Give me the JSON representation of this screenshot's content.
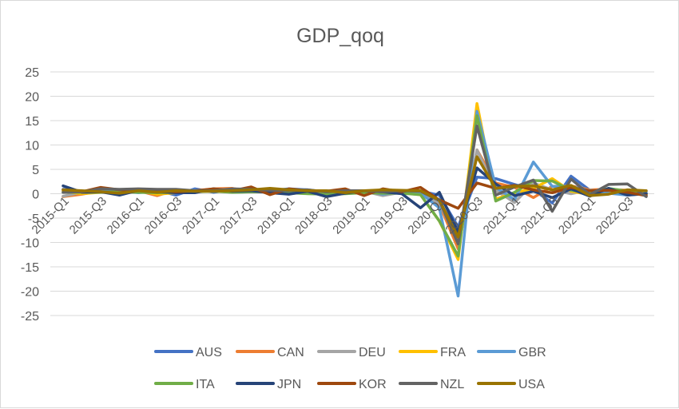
{
  "chart_data": {
    "type": "line",
    "title": "GDP_qoq",
    "xlabel": "",
    "ylabel": "",
    "ylim": [
      -25,
      25
    ],
    "yticks": [
      25,
      20,
      15,
      10,
      5,
      0,
      -5,
      -10,
      -15,
      -20,
      -25
    ],
    "grid": true,
    "legend_position": "bottom",
    "x": [
      "2015-Q1",
      "2015-Q2",
      "2015-Q3",
      "2015-Q4",
      "2016-Q1",
      "2016-Q2",
      "2016-Q3",
      "2016-Q4",
      "2017-Q1",
      "2017-Q2",
      "2017-Q3",
      "2017-Q4",
      "2018-Q1",
      "2018-Q2",
      "2018-Q3",
      "2018-Q4",
      "2019-Q1",
      "2019-Q2",
      "2019-Q3",
      "2019-Q4",
      "2020-Q1",
      "2020-Q2",
      "2020-Q3",
      "2020-Q4",
      "2021-Q1",
      "2021-Q2",
      "2021-Q3",
      "2021-Q4",
      "2022-Q1",
      "2022-Q2",
      "2022-Q3",
      "2022-Q4"
    ],
    "x_tick_labels": [
      "2015-Q1",
      "2015-Q3",
      "2016-Q1",
      "2016-Q3",
      "2017-Q1",
      "2017-Q3",
      "2018-Q1",
      "2018-Q3",
      "2019-Q1",
      "2019-Q3",
      "2020-Q1",
      "2020-Q3",
      "2021-Q1",
      "2021-Q3",
      "2022-Q1",
      "2022-Q3"
    ],
    "series": [
      {
        "name": "AUS",
        "color": "#4472c4",
        "values": [
          0.9,
          0.3,
          0.9,
          0.6,
          0.8,
          0.7,
          -0.3,
          1.0,
          0.3,
          0.8,
          0.6,
          0.6,
          1.0,
          0.8,
          0.3,
          0.3,
          0.5,
          0.6,
          0.6,
          0.5,
          -0.3,
          -6.8,
          3.4,
          3.1,
          1.9,
          0.8,
          -1.9,
          3.6,
          0.7,
          0.8,
          0.6,
          0.5
        ]
      },
      {
        "name": "CAN",
        "color": "#ed7d31",
        "values": [
          -0.6,
          -0.1,
          0.6,
          0.0,
          0.6,
          -0.4,
          0.8,
          0.5,
          1.0,
          1.1,
          0.4,
          0.4,
          0.4,
          0.6,
          0.5,
          0.2,
          0.2,
          0.8,
          0.3,
          0.1,
          -2.1,
          -11.3,
          9.0,
          2.2,
          1.3,
          -0.8,
          1.5,
          1.6,
          0.8,
          0.9,
          0.7,
          0.0
        ]
      },
      {
        "name": "DEU",
        "color": "#a5a5a5",
        "values": [
          -0.5,
          0.3,
          0.4,
          0.6,
          0.7,
          0.5,
          0.3,
          0.4,
          0.9,
          0.7,
          0.8,
          0.6,
          0.2,
          0.4,
          -0.1,
          0.2,
          0.5,
          -0.4,
          0.3,
          0.0,
          -1.9,
          -9.7,
          9.0,
          0.7,
          -1.8,
          2.2,
          0.8,
          0.0,
          0.8,
          0.1,
          0.5,
          -0.4
        ]
      },
      {
        "name": "FRA",
        "color": "#ffc000",
        "values": [
          0.5,
          0.0,
          0.3,
          0.3,
          0.6,
          -0.1,
          0.2,
          0.6,
          0.8,
          0.7,
          0.6,
          0.7,
          0.0,
          0.3,
          0.3,
          0.5,
          0.4,
          0.2,
          0.2,
          -0.2,
          -5.6,
          -13.5,
          18.5,
          -1.1,
          0.2,
          1.1,
          3.1,
          0.5,
          -0.2,
          0.5,
          0.2,
          0.0
        ]
      },
      {
        "name": "GBR",
        "color": "#5b9bd5",
        "values": [
          0.3,
          0.5,
          0.4,
          0.6,
          0.2,
          0.6,
          0.5,
          0.7,
          0.6,
          0.3,
          0.4,
          0.5,
          0.1,
          0.5,
          0.6,
          0.2,
          0.6,
          -0.1,
          0.4,
          0.1,
          -2.9,
          -21.0,
          16.9,
          1.3,
          -1.2,
          6.5,
          1.5,
          1.5,
          0.6,
          0.1,
          -0.3,
          0.1
        ]
      },
      {
        "name": "ITA",
        "color": "#70ad47",
        "values": [
          0.3,
          0.3,
          0.3,
          0.4,
          0.3,
          0.2,
          0.3,
          0.4,
          0.5,
          0.3,
          0.4,
          0.4,
          0.2,
          0.0,
          -0.1,
          0.0,
          0.2,
          0.1,
          0.1,
          -0.2,
          -5.6,
          -12.8,
          16.0,
          -1.5,
          0.3,
          2.7,
          2.6,
          0.7,
          0.1,
          1.1,
          0.5,
          -0.1
        ]
      },
      {
        "name": "JPN",
        "color": "#264478",
        "values": [
          1.6,
          0.3,
          0.4,
          -0.3,
          0.7,
          0.4,
          0.2,
          0.2,
          1.0,
          0.5,
          0.6,
          0.2,
          -0.1,
          0.5,
          -0.6,
          0.1,
          0.6,
          0.4,
          0.0,
          -2.9,
          0.3,
          -7.9,
          5.3,
          2.0,
          -0.4,
          0.5,
          -0.8,
          1.0,
          -0.5,
          1.1,
          -0.3,
          0.0
        ]
      },
      {
        "name": "KOR",
        "color": "#9e480e",
        "values": [
          0.8,
          0.4,
          1.3,
          0.8,
          0.6,
          0.8,
          0.4,
          0.6,
          1.0,
          0.6,
          1.4,
          -0.2,
          1.0,
          0.6,
          0.5,
          1.0,
          -0.4,
          1.0,
          0.4,
          1.3,
          -1.3,
          -3.0,
          2.2,
          1.1,
          1.7,
          0.8,
          0.2,
          1.3,
          0.6,
          0.7,
          0.3,
          -0.4
        ]
      },
      {
        "name": "NZL",
        "color": "#636363",
        "values": [
          0.3,
          0.4,
          1.0,
          0.9,
          1.0,
          0.9,
          0.9,
          0.6,
          0.6,
          1.0,
          0.9,
          0.7,
          0.6,
          0.8,
          0.4,
          0.6,
          0.6,
          0.4,
          0.6,
          0.5,
          -1.4,
          -10.3,
          13.9,
          -0.3,
          1.4,
          2.8,
          -3.6,
          3.0,
          -0.2,
          1.9,
          2.0,
          -0.6
        ]
      },
      {
        "name": "USA",
        "color": "#997300",
        "values": [
          0.8,
          0.6,
          0.4,
          0.1,
          0.6,
          0.3,
          0.6,
          0.5,
          0.5,
          0.6,
          0.8,
          1.1,
          0.8,
          0.6,
          0.6,
          0.2,
          0.6,
          0.8,
          0.7,
          0.6,
          -1.3,
          -8.9,
          7.6,
          1.1,
          1.5,
          1.6,
          0.8,
          1.7,
          -0.4,
          -0.1,
          0.8,
          0.6
        ]
      }
    ]
  }
}
